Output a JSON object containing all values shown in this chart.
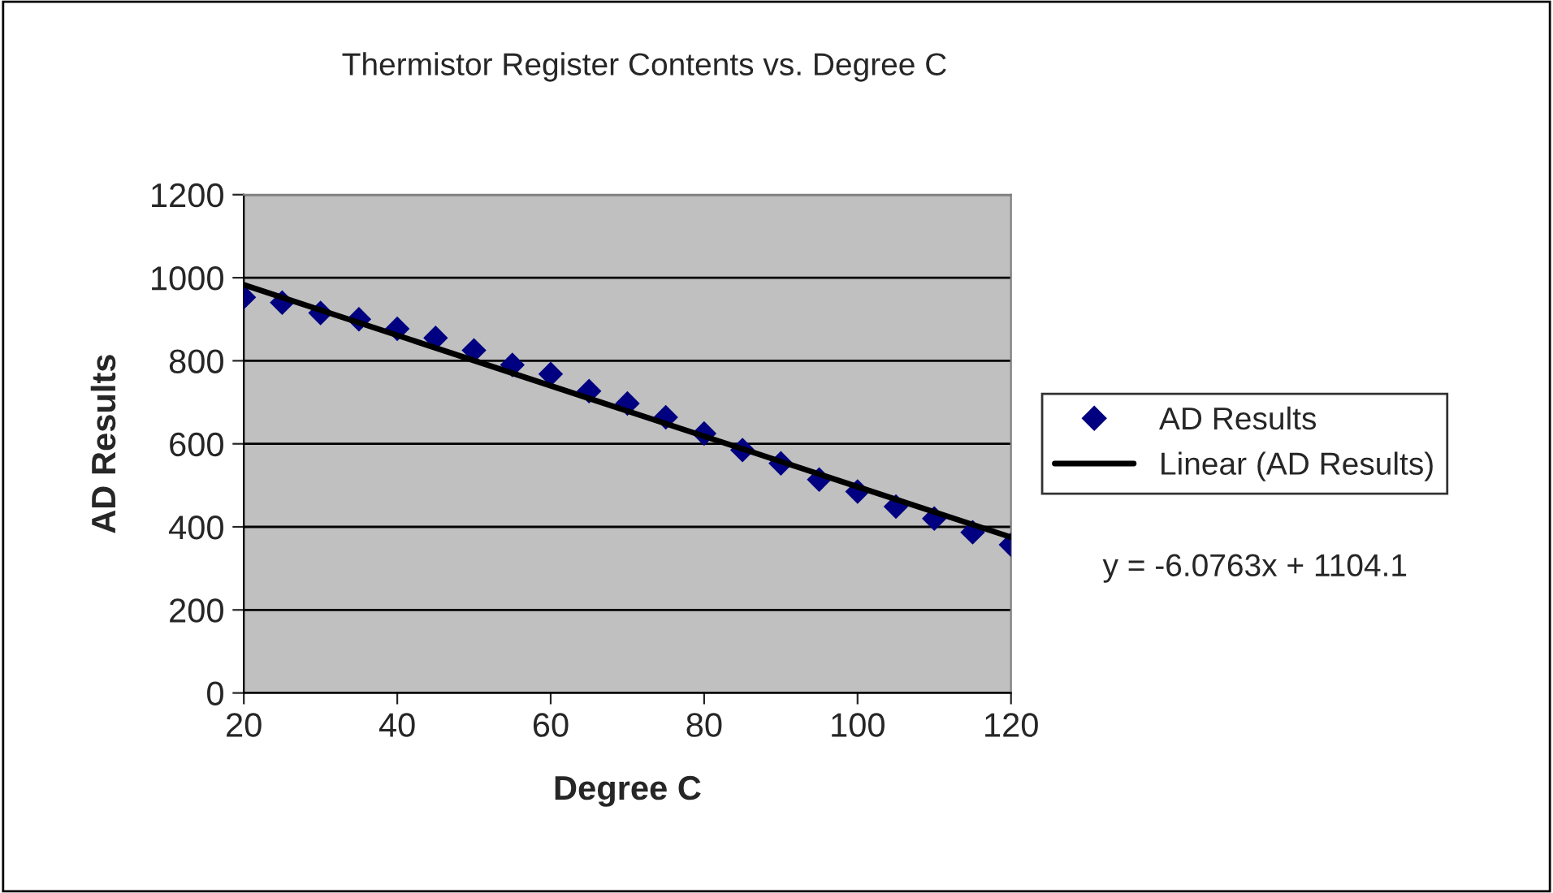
{
  "chart_data": {
    "type": "scatter",
    "title": "Thermistor Register Contents vs. Degree C",
    "xlabel": "Degree C",
    "ylabel": "AD Results",
    "x": [
      20,
      25,
      30,
      35,
      40,
      45,
      50,
      55,
      60,
      65,
      70,
      75,
      80,
      85,
      90,
      95,
      100,
      105,
      110,
      115,
      120
    ],
    "series": [
      {
        "name": "AD Results",
        "color": "#000080",
        "marker": "diamond",
        "values": [
          953,
          940,
          915,
          900,
          877,
          855,
          825,
          790,
          768,
          727,
          697,
          664,
          625,
          585,
          553,
          514,
          485,
          449,
          420,
          387,
          357
        ]
      },
      {
        "name": "Linear (AD Results)",
        "type": "line",
        "color": "#000000",
        "x": [
          20,
          120
        ],
        "values": [
          983,
          375
        ],
        "marker": "none",
        "line_style": "solid"
      }
    ],
    "annotations": [
      "y = -6.0763x + 1104.1"
    ],
    "xlim": [
      20,
      120
    ],
    "xticks": [
      20,
      40,
      60,
      80,
      100,
      120
    ],
    "ylim": [
      0,
      1200
    ],
    "yticks": [
      0,
      200,
      400,
      600,
      800,
      1000,
      1200
    ],
    "grid": "y",
    "legend": "right"
  }
}
